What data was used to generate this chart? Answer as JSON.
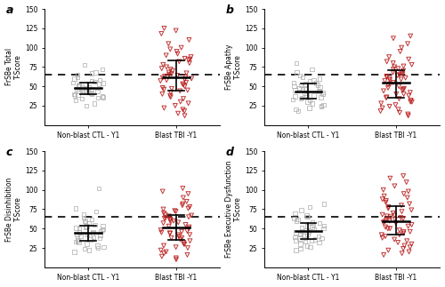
{
  "panels": [
    {
      "label": "a",
      "ylabel": "FrSBe Total\nT-Score",
      "dashed_line": 65,
      "ctl_points": [
        78,
        72,
        68,
        67,
        65,
        62,
        60,
        58,
        57,
        56,
        55,
        54,
        53,
        52,
        51,
        50,
        50,
        49,
        48,
        48,
        47,
        46,
        45,
        45,
        44,
        43,
        43,
        42,
        41,
        40,
        40,
        39,
        38,
        37,
        36,
        35,
        34,
        32,
        28,
        25
      ],
      "tbi_points": [
        125,
        122,
        118,
        110,
        105,
        100,
        98,
        95,
        92,
        90,
        88,
        86,
        85,
        84,
        82,
        80,
        78,
        75,
        73,
        72,
        70,
        68,
        67,
        66,
        65,
        64,
        63,
        62,
        61,
        60,
        59,
        58,
        57,
        55,
        53,
        52,
        50,
        48,
        47,
        46,
        45,
        44,
        42,
        40,
        38,
        36,
        34,
        30,
        28,
        25,
        22,
        20,
        18,
        15,
        12
      ]
    },
    {
      "label": "b",
      "ylabel": "FrSBe Apathy\nT-Score",
      "dashed_line": 65,
      "ctl_points": [
        80,
        72,
        68,
        64,
        62,
        60,
        58,
        57,
        55,
        54,
        53,
        52,
        51,
        50,
        49,
        48,
        47,
        46,
        45,
        44,
        43,
        42,
        41,
        40,
        39,
        38,
        37,
        36,
        35,
        34,
        33,
        32,
        30,
        28,
        26,
        25,
        24,
        22,
        20,
        18
      ],
      "tbi_points": [
        115,
        112,
        105,
        100,
        95,
        88,
        85,
        82,
        80,
        78,
        76,
        75,
        73,
        72,
        70,
        68,
        67,
        66,
        65,
        64,
        63,
        62,
        61,
        60,
        59,
        58,
        57,
        55,
        53,
        52,
        50,
        48,
        47,
        46,
        45,
        44,
        42,
        40,
        38,
        36,
        34,
        32,
        30,
        28,
        26,
        24,
        22,
        20,
        18,
        16,
        14,
        12,
        30,
        40,
        35
      ]
    },
    {
      "label": "c",
      "ylabel": "FrSBe Disinhibition\nT-Score",
      "dashed_line": 65,
      "ctl_points": [
        102,
        76,
        72,
        68,
        64,
        62,
        60,
        58,
        57,
        55,
        54,
        53,
        52,
        51,
        50,
        49,
        48,
        47,
        46,
        45,
        44,
        43,
        42,
        41,
        40,
        39,
        38,
        37,
        36,
        35,
        34,
        33,
        32,
        30,
        28,
        26,
        25,
        24,
        22,
        20
      ],
      "tbi_points": [
        102,
        98,
        95,
        90,
        85,
        82,
        80,
        78,
        76,
        75,
        73,
        72,
        70,
        68,
        67,
        66,
        65,
        64,
        63,
        62,
        61,
        60,
        59,
        58,
        57,
        55,
        53,
        52,
        50,
        48,
        47,
        46,
        45,
        44,
        42,
        40,
        38,
        36,
        34,
        32,
        30,
        28,
        26,
        25,
        22,
        20,
        18,
        16,
        14,
        12,
        10,
        30,
        38,
        42,
        44
      ]
    },
    {
      "label": "d",
      "ylabel": "FrSBe Executive Dysfunction\nT-Score",
      "dashed_line": 65,
      "ctl_points": [
        82,
        78,
        74,
        70,
        67,
        65,
        63,
        62,
        60,
        58,
        57,
        55,
        54,
        53,
        52,
        51,
        50,
        49,
        48,
        47,
        46,
        45,
        44,
        43,
        42,
        41,
        40,
        39,
        38,
        37,
        36,
        35,
        34,
        33,
        32,
        30,
        28,
        26,
        24,
        22
      ],
      "tbi_points": [
        118,
        115,
        110,
        105,
        100,
        98,
        95,
        92,
        90,
        88,
        86,
        84,
        82,
        80,
        78,
        76,
        74,
        72,
        70,
        68,
        67,
        66,
        65,
        64,
        63,
        62,
        61,
        60,
        59,
        58,
        57,
        55,
        53,
        52,
        50,
        48,
        46,
        44,
        42,
        40,
        38,
        36,
        34,
        32,
        30,
        28,
        26,
        24,
        22,
        20,
        18,
        16,
        42,
        46,
        50
      ]
    }
  ],
  "ctl_color": "#b0b0b0",
  "tbi_color": "#bb2222",
  "ylim": [
    0,
    150
  ],
  "yticks": [
    25,
    50,
    75,
    100,
    125,
    150
  ],
  "xlabel_ctl": "Non-blast CTL - Y1",
  "xlabel_tbi": "Blast TBI -Y1"
}
